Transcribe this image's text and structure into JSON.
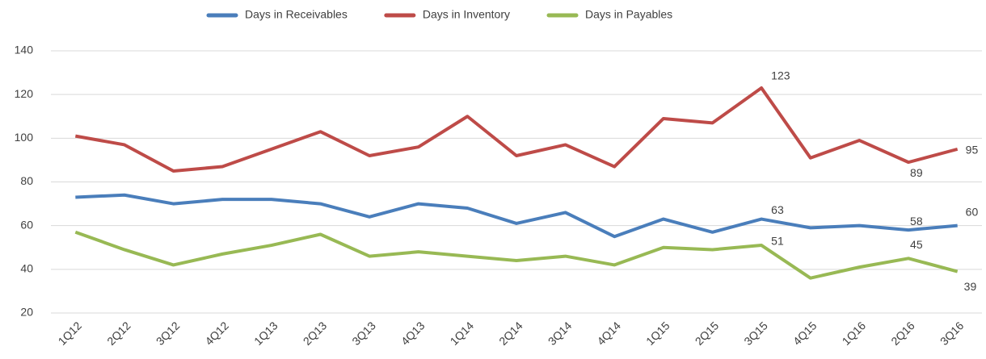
{
  "chart_data": {
    "type": "line",
    "categories": [
      "1Q12",
      "2Q12",
      "3Q12",
      "4Q12",
      "1Q13",
      "2Q13",
      "3Q13",
      "4Q13",
      "1Q14",
      "2Q14",
      "3Q14",
      "4Q14",
      "1Q15",
      "2Q15",
      "3Q15",
      "4Q15",
      "1Q16",
      "2Q16",
      "3Q16"
    ],
    "series": [
      {
        "name": "Days in Receivables",
        "color": "#4a7ebb",
        "values": [
          73,
          74,
          70,
          72,
          72,
          70,
          64,
          70,
          68,
          61,
          66,
          55,
          63,
          57,
          63,
          59,
          60,
          58,
          60
        ]
      },
      {
        "name": "Days in Inventory",
        "color": "#be4b48",
        "values": [
          101,
          97,
          85,
          87,
          95,
          103,
          92,
          96,
          110,
          92,
          97,
          87,
          109,
          107,
          123,
          91,
          99,
          89,
          95
        ]
      },
      {
        "name": "Days in Payables",
        "color": "#98b954",
        "values": [
          57,
          49,
          42,
          47,
          51,
          56,
          46,
          48,
          46,
          44,
          46,
          42,
          50,
          49,
          51,
          36,
          41,
          45,
          39
        ]
      }
    ],
    "ylim": [
      20,
      140
    ],
    "yticks": [
      20,
      40,
      60,
      80,
      100,
      120,
      140
    ],
    "grid": true,
    "legend": "top"
  }
}
